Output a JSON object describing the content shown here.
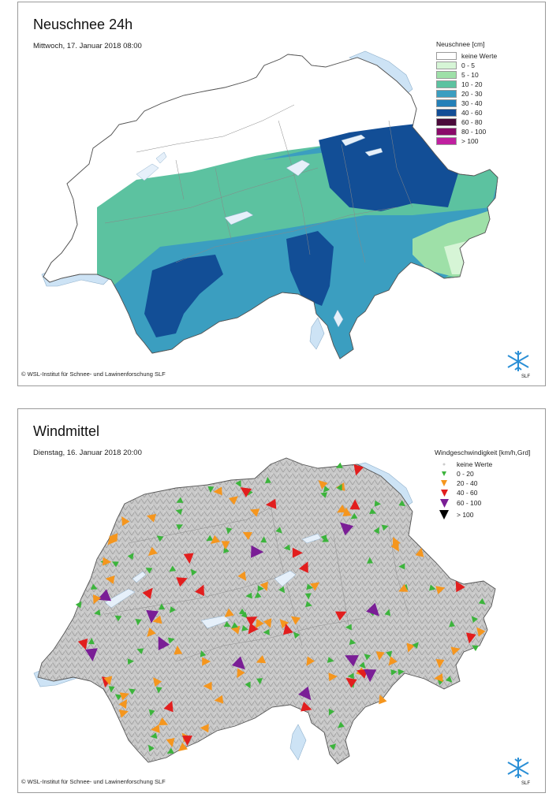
{
  "panel1": {
    "title": "Neuschnee 24h",
    "subtitle": "Mittwoch, 17. Januar 2018 08:00",
    "legend_title": "Neuschnee [cm]",
    "legend": [
      {
        "label": "keine Werte",
        "color": "#ffffff"
      },
      {
        "label": "0 - 5",
        "color": "#d6f5d6"
      },
      {
        "label": "5 - 10",
        "color": "#9ee0a8"
      },
      {
        "label": "10 - 20",
        "color": "#5cc2a0"
      },
      {
        "label": "20 - 30",
        "color": "#3b9ec0"
      },
      {
        "label": "30 - 40",
        "color": "#2480b8"
      },
      {
        "label": "40 - 60",
        "color": "#124e96"
      },
      {
        "label": "60 - 80",
        "color": "#4a0a3a"
      },
      {
        "label": "80 - 100",
        "color": "#8a0a6a"
      },
      {
        "label": "> 100",
        "color": "#c020a0"
      }
    ],
    "copyright": "© WSL-Institut für Schnee- und Lawinenforschung SLF",
    "logo_text": "SLF"
  },
  "panel2": {
    "title": "Windmittel",
    "subtitle": "Dienstag, 16. Januar 2018 20:00",
    "legend_title": "Windgeschwindigkeit [km/h,Grd]",
    "legend": [
      {
        "label": "keine Werte",
        "color": "#cccccc"
      },
      {
        "label": "0 - 20",
        "color": "#3cb43c"
      },
      {
        "label": "20 - 40",
        "color": "#f5961e"
      },
      {
        "label": "40 - 60",
        "color": "#e21e1e"
      },
      {
        "label": "60 - 100",
        "color": "#7a1e96"
      },
      {
        "label": "> 100",
        "color": "#000000"
      }
    ],
    "copyright": "© WSL-Institut für Schnee- und Lawinenforschung SLF",
    "logo_text": "SLF"
  }
}
